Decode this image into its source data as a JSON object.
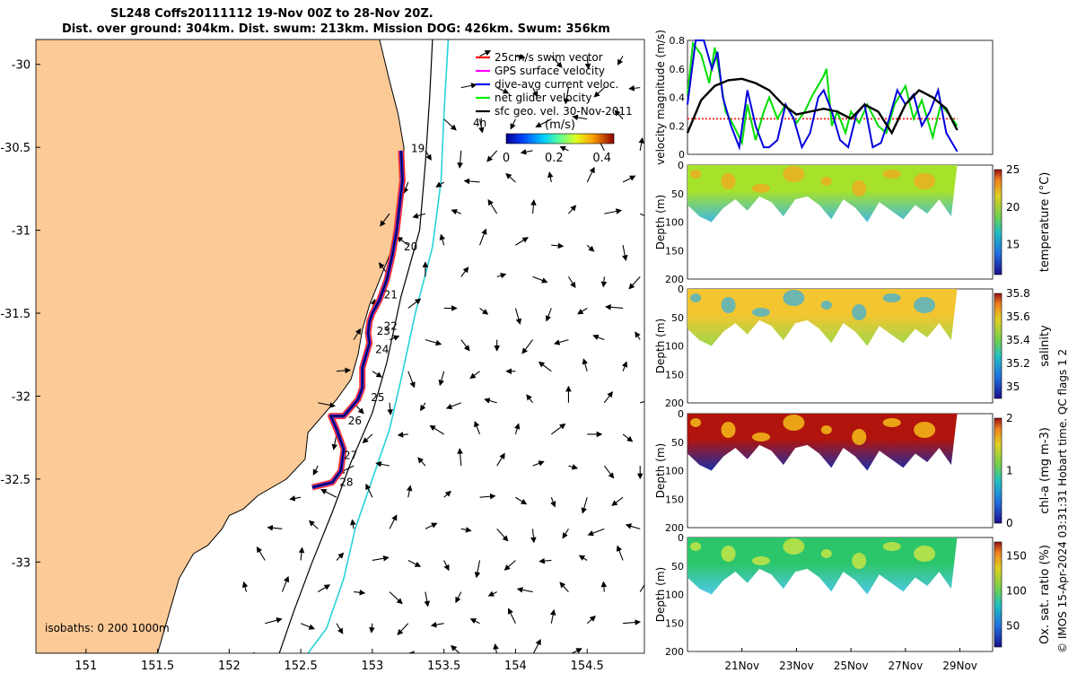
{
  "title": {
    "line1": "SL248 Coffs20111112 19-Nov 00Z to 28-Nov 20Z.",
    "line2": "Dist. over ground: 304km. Dist. swum: 213km. Mission DOG: 426km. Swum: 356km"
  },
  "chart_data": [
    {
      "type": "scatter",
      "name": "map",
      "x_ticks": [
        "151",
        "151.5",
        "152",
        "152.5",
        "153",
        "153.5",
        "154",
        "154.5"
      ],
      "xlim": [
        150.65,
        154.9
      ],
      "y_ticks": [
        "-30",
        "-30.5",
        "-31",
        "-31.5",
        "-32",
        "-32.5",
        "-33"
      ],
      "ylim": [
        -33.55,
        -29.85
      ],
      "legend": {
        "placement": "top-right",
        "entries": [
          {
            "label": "25cm/s swim vector",
            "color": "#ff0000"
          },
          {
            "label": "GPS surface velocity",
            "color": "#ff00ff"
          },
          {
            "label": "dive-avg current veloc.",
            "color": "#0000ff"
          },
          {
            "label": "net glider velocity",
            "color": "#00ee00"
          },
          {
            "label": "sfc geo. vel. 30-Nov-2011",
            "color": "#000000"
          }
        ],
        "extra_label": "4h"
      },
      "colorbar": {
        "unit": "(m/s)",
        "ticks": [
          "0",
          "0.2",
          "0.4"
        ],
        "range": [
          0,
          0.45
        ]
      },
      "day_labels": [
        {
          "label": "19",
          "lon": 153.27,
          "lat": -30.53
        },
        {
          "label": "20",
          "lon": 153.22,
          "lat": -31.12
        },
        {
          "label": "21",
          "lon": 153.08,
          "lat": -31.41
        },
        {
          "label": "22",
          "lon": 153.08,
          "lat": -31.6
        },
        {
          "label": "23",
          "lon": 153.03,
          "lat": -31.63
        },
        {
          "label": "24",
          "lon": 153.02,
          "lat": -31.74
        },
        {
          "label": "25",
          "lon": 152.99,
          "lat": -32.03
        },
        {
          "label": "26",
          "lon": 152.83,
          "lat": -32.17
        },
        {
          "label": "27",
          "lon": 152.8,
          "lat": -32.38
        },
        {
          "label": "28",
          "lon": 152.77,
          "lat": -32.54
        }
      ],
      "isobaths_label": "isobaths: 0   200  1000m",
      "track": [
        [
          153.2,
          -30.52
        ],
        [
          153.21,
          -30.7
        ],
        [
          153.19,
          -30.85
        ],
        [
          153.17,
          -31.0
        ],
        [
          153.14,
          -31.15
        ],
        [
          153.1,
          -31.3
        ],
        [
          153.05,
          -31.42
        ],
        [
          153.0,
          -31.5
        ],
        [
          152.98,
          -31.55
        ],
        [
          152.97,
          -31.62
        ],
        [
          152.98,
          -31.68
        ],
        [
          152.96,
          -31.74
        ],
        [
          152.93,
          -31.83
        ],
        [
          152.93,
          -31.95
        ],
        [
          152.9,
          -32.02
        ],
        [
          152.85,
          -32.07
        ],
        [
          152.8,
          -32.12
        ],
        [
          152.71,
          -32.12
        ],
        [
          152.75,
          -32.2
        ],
        [
          152.8,
          -32.32
        ],
        [
          152.78,
          -32.45
        ],
        [
          152.72,
          -32.52
        ],
        [
          152.58,
          -32.55
        ]
      ]
    },
    {
      "type": "line",
      "name": "velocity",
      "ylabel": "velocity magnitude (m/s)",
      "ylim": [
        0,
        0.8
      ],
      "y_ticks": [
        "0",
        "0.2",
        "0.4",
        "0.6",
        "0.8"
      ],
      "x_range_days": [
        19,
        30.2
      ],
      "series": [
        {
          "color": "#00dd00",
          "x": [
            19,
            19.2,
            19.5,
            19.8,
            20.0,
            20.1,
            20.4,
            20.7,
            21.0,
            21.2,
            21.5,
            21.8,
            22.0,
            22.3,
            22.6,
            23.0,
            23.3,
            23.6,
            24.0,
            24.1,
            24.3,
            24.5,
            24.8,
            25.0,
            25.3,
            25.6,
            26.0,
            26.3,
            26.6,
            27.0,
            27.3,
            27.6,
            28.0,
            28.3,
            28.6,
            28.9
          ],
          "values": [
            0.42,
            0.78,
            0.7,
            0.5,
            0.75,
            0.65,
            0.3,
            0.2,
            0.08,
            0.35,
            0.1,
            0.3,
            0.4,
            0.25,
            0.35,
            0.22,
            0.3,
            0.42,
            0.55,
            0.6,
            0.2,
            0.3,
            0.15,
            0.3,
            0.22,
            0.35,
            0.2,
            0.15,
            0.35,
            0.48,
            0.25,
            0.38,
            0.12,
            0.35,
            0.28,
            0.2
          ]
        },
        {
          "color": "#0000dd",
          "x": [
            19,
            19.3,
            19.6,
            19.9,
            20.1,
            20.3,
            20.6,
            20.9,
            21.2,
            21.5,
            21.8,
            22.0,
            22.3,
            22.6,
            22.9,
            23.2,
            23.5,
            23.8,
            24.0,
            24.3,
            24.6,
            24.9,
            25.2,
            25.5,
            25.8,
            26.1,
            26.4,
            26.7,
            27.0,
            27.3,
            27.6,
            27.9,
            28.2,
            28.5,
            28.9
          ],
          "values": [
            0.35,
            0.8,
            0.8,
            0.6,
            0.72,
            0.4,
            0.2,
            0.05,
            0.45,
            0.2,
            0.05,
            0.05,
            0.1,
            0.35,
            0.25,
            0.05,
            0.15,
            0.4,
            0.45,
            0.3,
            0.1,
            0.05,
            0.28,
            0.35,
            0.05,
            0.08,
            0.25,
            0.45,
            0.35,
            0.42,
            0.2,
            0.3,
            0.45,
            0.15,
            0.02
          ]
        },
        {
          "color": "#000000",
          "x": [
            19,
            19.5,
            20.0,
            20.5,
            21.0,
            21.5,
            22.0,
            22.5,
            23.0,
            23.5,
            24.0,
            24.5,
            25.0,
            25.5,
            26.0,
            26.5,
            27.0,
            27.5,
            28.0,
            28.5,
            28.9
          ],
          "values": [
            0.15,
            0.38,
            0.48,
            0.52,
            0.53,
            0.5,
            0.45,
            0.35,
            0.28,
            0.3,
            0.32,
            0.3,
            0.25,
            0.35,
            0.3,
            0.15,
            0.35,
            0.45,
            0.4,
            0.32,
            0.17
          ]
        }
      ]
    },
    {
      "type": "heatmap",
      "name": "temperature",
      "ylabel": "Depth (m)",
      "clabel": "temperature (°C)",
      "ylim": [
        0,
        200
      ],
      "y_ticks": [
        "0",
        "50",
        "100",
        "150",
        "200"
      ],
      "c_ticks": [
        "15",
        "20",
        "25"
      ],
      "crange": [
        11,
        25
      ],
      "colors": {
        "top": "#a6e22a",
        "bottom": "#3fb8e0",
        "highlight": "#f4a623"
      }
    },
    {
      "type": "heatmap",
      "name": "salinity",
      "ylabel": "Depth (m)",
      "clabel": "salinity",
      "ylim": [
        0,
        200
      ],
      "y_ticks": [
        "0",
        "50",
        "100",
        "150",
        "200"
      ],
      "c_ticks": [
        "35",
        "35.2",
        "35.4",
        "35.6",
        "35.8"
      ],
      "crange": [
        34.9,
        35.8
      ],
      "colors": {
        "top": "#f2c531",
        "bottom": "#9ed84a",
        "highlight": "#3fb0d8"
      }
    },
    {
      "type": "heatmap",
      "name": "chl-a",
      "ylabel": "Depth (m)",
      "clabel": "chl-a (mg m-3)",
      "ylim": [
        0,
        200
      ],
      "y_ticks": [
        "0",
        "50",
        "100",
        "150",
        "200"
      ],
      "c_ticks": [
        "0",
        "1",
        "2"
      ],
      "crange": [
        0,
        2
      ],
      "colors": {
        "top": "#b0140c",
        "bottom": "#1c2ea8",
        "highlight": "#ffd21a"
      }
    },
    {
      "type": "heatmap",
      "name": "oxygen",
      "ylabel": "Depth (m)",
      "clabel": "Ox. sat. ratio (%)",
      "ylim": [
        0,
        200
      ],
      "y_ticks": [
        "0",
        "50",
        "100",
        "150",
        "200"
      ],
      "c_ticks": [
        "50",
        "100",
        "150"
      ],
      "crange": [
        20,
        170
      ],
      "x_ticks": [
        "21Nov",
        "23Nov",
        "25Nov",
        "27Nov",
        "29Nov"
      ],
      "colors": {
        "top": "#2cc56a",
        "bottom": "#4ec9e8",
        "highlight": "#d8e840"
      }
    }
  ],
  "side_note": "© IMOS 15-Apr-2024 03:31:31 Hobart time. QC flags 1  2"
}
